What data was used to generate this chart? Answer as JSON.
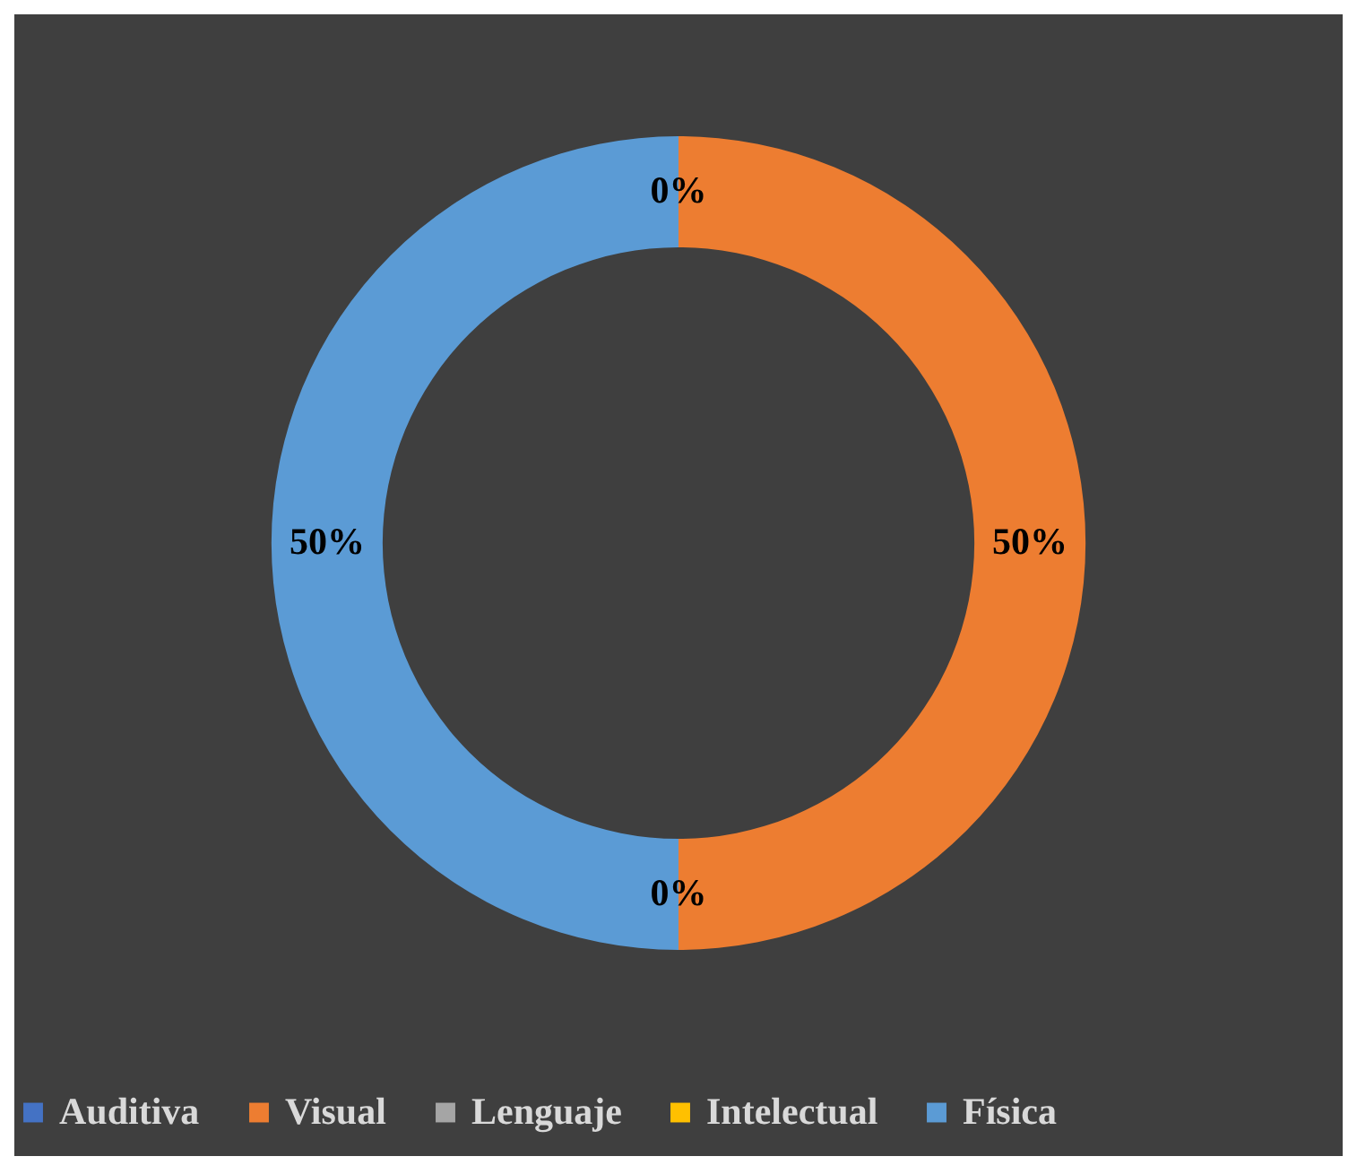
{
  "chart_data": {
    "type": "donut",
    "categories": [
      "Auditiva",
      "Visual",
      "Lenguaje",
      "Intelectual",
      "Física"
    ],
    "values": [
      0,
      50,
      0,
      0,
      50
    ],
    "colors": [
      "#4472c4",
      "#ed7d31",
      "#a5a5a5",
      "#ffc000",
      "#5b9bd5"
    ],
    "value_labels": [
      "0%",
      "50%",
      "0%",
      null,
      "50%"
    ],
    "legend": "bottom"
  }
}
